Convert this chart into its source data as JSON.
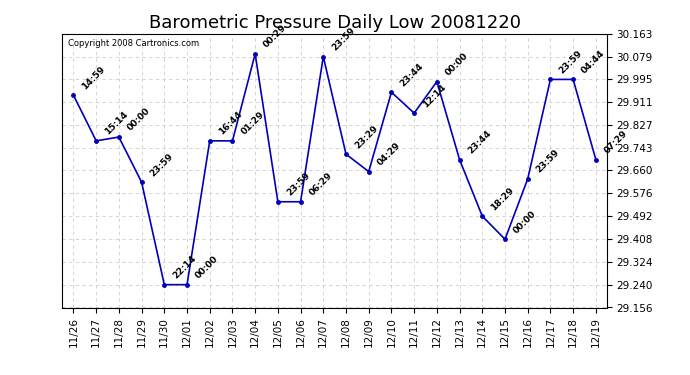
{
  "title": "Barometric Pressure Daily Low 20081220",
  "copyright": "Copyright 2008 Cartronics.com",
  "x_labels": [
    "11/26",
    "11/27",
    "11/28",
    "11/29",
    "11/30",
    "12/01",
    "12/02",
    "12/03",
    "12/04",
    "12/05",
    "12/06",
    "12/07",
    "12/08",
    "12/09",
    "12/10",
    "12/11",
    "12/12",
    "12/13",
    "12/14",
    "12/15",
    "12/16",
    "12/17",
    "12/18",
    "12/19"
  ],
  "y_values": [
    29.937,
    29.769,
    29.783,
    29.617,
    29.24,
    29.24,
    29.769,
    29.769,
    30.089,
    29.545,
    29.545,
    30.079,
    29.72,
    29.656,
    29.948,
    29.871,
    29.987,
    29.7,
    29.492,
    29.407,
    29.629,
    29.995,
    29.995,
    29.7
  ],
  "annotations": [
    "14:59",
    "15:14",
    "00:00",
    "23:59",
    "22:14",
    "00:00",
    "16:44",
    "01:29",
    "00:29",
    "23:59",
    "06:29",
    "23:59",
    "23:29",
    "04:29",
    "23:44",
    "12:14",
    "00:00",
    "23:44",
    "18:29",
    "00:00",
    "23:59",
    "23:59",
    "04:44",
    "07:29"
  ],
  "y_ticks": [
    29.156,
    29.24,
    29.324,
    29.408,
    29.492,
    29.576,
    29.66,
    29.743,
    29.827,
    29.911,
    29.995,
    30.079,
    30.163
  ],
  "line_color": "#0000bb",
  "bg_color": "#ffffff",
  "grid_color": "#cccccc",
  "title_fontsize": 13,
  "label_fontsize": 7.5,
  "annotation_fontsize": 6.5,
  "y_min": 29.156,
  "y_max": 30.163
}
